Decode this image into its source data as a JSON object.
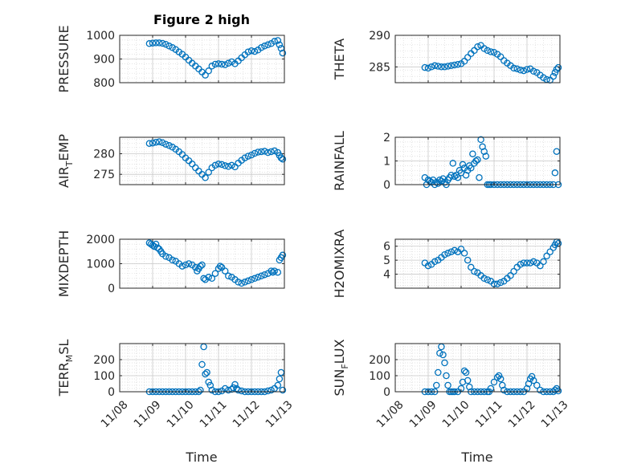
{
  "figure": {
    "title": "Figure 2 high",
    "marker_color": "#0072BD",
    "date_ticks": [
      "11/08",
      "11/09",
      "11/10",
      "11/11",
      "11/12",
      "11/13"
    ],
    "xlabel": "Time"
  },
  "chart_data": [
    {
      "type": "scatter",
      "id": "pressure",
      "col": 0,
      "row": 0,
      "ylabel": "PRESSURE",
      "ylabel_sub": "",
      "ylabel_suffix": "",
      "xlim": [
        0,
        5
      ],
      "ylim": [
        800,
        1000
      ],
      "yticks": [
        800,
        900,
        1000
      ],
      "ytick_labels": [
        "800",
        "900",
        "1000"
      ],
      "grid": true,
      "minor_grid": true,
      "show_xticklabels": false,
      "x": [
        0.9,
        1.0,
        1.1,
        1.2,
        1.3,
        1.4,
        1.5,
        1.6,
        1.7,
        1.8,
        1.9,
        2.0,
        2.1,
        2.2,
        2.3,
        2.4,
        2.5,
        2.6,
        2.7,
        2.8,
        2.9,
        3.0,
        3.1,
        3.2,
        3.3,
        3.4,
        3.5,
        3.6,
        3.7,
        3.8,
        3.9,
        4.0,
        4.1,
        4.2,
        4.3,
        4.4,
        4.5,
        4.6,
        4.7,
        4.8,
        4.85,
        4.9,
        4.95
      ],
      "y": [
        965,
        967,
        968,
        968,
        966,
        962,
        955,
        948,
        940,
        930,
        920,
        908,
        895,
        882,
        870,
        858,
        845,
        832,
        850,
        870,
        878,
        880,
        878,
        876,
        882,
        888,
        880,
        892,
        905,
        918,
        930,
        935,
        932,
        938,
        948,
        955,
        960,
        965,
        975,
        978,
        960,
        945,
        925
      ]
    },
    {
      "type": "scatter",
      "id": "theta",
      "col": 1,
      "row": 0,
      "ylabel": "THETA",
      "ylabel_sub": "",
      "ylabel_suffix": "",
      "xlim": [
        0,
        5
      ],
      "ylim": [
        282.5,
        290
      ],
      "yticks": [
        285,
        290
      ],
      "ytick_labels": [
        "285",
        "290"
      ],
      "grid": true,
      "minor_grid": true,
      "show_xticklabels": false,
      "x": [
        0.9,
        1.0,
        1.1,
        1.2,
        1.3,
        1.4,
        1.5,
        1.6,
        1.7,
        1.8,
        1.9,
        2.0,
        2.1,
        2.2,
        2.3,
        2.4,
        2.5,
        2.6,
        2.7,
        2.8,
        2.9,
        3.0,
        3.1,
        3.2,
        3.3,
        3.4,
        3.5,
        3.6,
        3.7,
        3.8,
        3.9,
        4.0,
        4.1,
        4.2,
        4.3,
        4.4,
        4.5,
        4.6,
        4.7,
        4.8,
        4.85,
        4.9,
        4.95
      ],
      "y": [
        284.9,
        284.8,
        285.0,
        285.2,
        285.1,
        285.0,
        285.0,
        285.1,
        285.2,
        285.3,
        285.4,
        285.5,
        285.9,
        286.5,
        287.1,
        287.6,
        288.2,
        288.4,
        287.9,
        287.6,
        287.4,
        287.3,
        287.0,
        286.6,
        286.0,
        285.6,
        285.2,
        284.8,
        284.7,
        284.5,
        284.4,
        284.6,
        284.7,
        284.3,
        284.1,
        283.7,
        283.3,
        283.0,
        282.9,
        283.5,
        284.1,
        284.6,
        284.9
      ]
    },
    {
      "type": "scatter",
      "id": "air-temp",
      "col": 0,
      "row": 1,
      "ylabel": "AIR",
      "ylabel_sub": "T",
      "ylabel_suffix": "EMP",
      "xlim": [
        0,
        5
      ],
      "ylim": [
        272.5,
        284
      ],
      "yticks": [
        275,
        280
      ],
      "ytick_labels": [
        "275",
        "280"
      ],
      "grid": true,
      "minor_grid": true,
      "show_xticklabels": false,
      "x": [
        0.9,
        1.0,
        1.1,
        1.2,
        1.3,
        1.4,
        1.5,
        1.6,
        1.7,
        1.8,
        1.9,
        2.0,
        2.1,
        2.2,
        2.3,
        2.4,
        2.5,
        2.6,
        2.7,
        2.8,
        2.9,
        3.0,
        3.1,
        3.2,
        3.3,
        3.4,
        3.5,
        3.6,
        3.7,
        3.8,
        3.9,
        4.0,
        4.1,
        4.2,
        4.3,
        4.4,
        4.5,
        4.6,
        4.7,
        4.8,
        4.85,
        4.9,
        4.95
      ],
      "y": [
        282.5,
        282.6,
        282.8,
        282.9,
        282.7,
        282.3,
        282.0,
        281.6,
        281.1,
        280.5,
        279.8,
        279.0,
        278.3,
        277.5,
        276.6,
        275.8,
        275.0,
        274.2,
        275.5,
        276.6,
        277.2,
        277.5,
        277.4,
        277.1,
        276.9,
        277.2,
        276.8,
        277.7,
        278.4,
        279.0,
        279.4,
        279.7,
        280.1,
        280.4,
        280.5,
        280.6,
        280.3,
        280.5,
        280.7,
        280.3,
        279.6,
        279.0,
        278.7
      ]
    },
    {
      "type": "scatter",
      "id": "rainfall",
      "col": 1,
      "row": 1,
      "ylabel": "RAINFALL",
      "ylabel_sub": "",
      "ylabel_suffix": "",
      "xlim": [
        0,
        5
      ],
      "ylim": [
        0,
        2
      ],
      "yticks": [
        0,
        1,
        2
      ],
      "ytick_labels": [
        "0",
        "1",
        "2"
      ],
      "grid": true,
      "minor_grid": true,
      "show_xticklabels": false,
      "x": [
        0.9,
        0.95,
        1.0,
        1.05,
        1.1,
        1.15,
        1.2,
        1.25,
        1.3,
        1.35,
        1.4,
        1.45,
        1.5,
        1.55,
        1.6,
        1.65,
        1.7,
        1.75,
        1.8,
        1.85,
        1.9,
        1.95,
        2.0,
        2.05,
        2.1,
        2.15,
        2.2,
        2.25,
        2.3,
        2.35,
        2.4,
        2.45,
        2.5,
        2.55,
        2.6,
        2.65,
        2.7,
        2.75,
        2.8,
        2.85,
        2.9,
        3.0,
        3.1,
        3.2,
        3.3,
        3.4,
        3.5,
        3.6,
        3.7,
        3.8,
        3.9,
        4.0,
        4.1,
        4.2,
        4.3,
        4.4,
        4.5,
        4.6,
        4.7,
        4.8,
        4.85,
        4.9,
        4.95
      ],
      "y": [
        0.3,
        0.0,
        0.2,
        0.15,
        0.1,
        0.2,
        0.0,
        0.1,
        0.05,
        0.2,
        0.15,
        0.25,
        0.1,
        0.0,
        0.2,
        0.3,
        0.4,
        0.9,
        0.35,
        0.4,
        0.3,
        0.6,
        0.5,
        0.85,
        0.7,
        0.4,
        0.6,
        0.8,
        0.7,
        1.3,
        0.9,
        1.0,
        1.05,
        0.3,
        1.9,
        1.6,
        1.4,
        1.2,
        0.0,
        0.0,
        0.0,
        0.0,
        0.0,
        0.0,
        0.0,
        0.0,
        0.0,
        0.0,
        0.0,
        0.0,
        0.0,
        0.0,
        0.0,
        0.0,
        0.0,
        0.0,
        0.0,
        0.0,
        0.0,
        0.0,
        0.5,
        1.4,
        0.0
      ]
    },
    {
      "type": "scatter",
      "id": "mixdepth",
      "col": 0,
      "row": 2,
      "ylabel": "MIXDEPTH",
      "ylabel_sub": "",
      "ylabel_suffix": "",
      "xlim": [
        0,
        5
      ],
      "ylim": [
        0,
        2000
      ],
      "yticks": [
        0,
        1000,
        2000
      ],
      "ytick_labels": [
        "0",
        "1000",
        "2000"
      ],
      "grid": true,
      "minor_grid": true,
      "show_xticklabels": false,
      "x": [
        0.9,
        0.95,
        1.0,
        1.05,
        1.1,
        1.15,
        1.2,
        1.25,
        1.3,
        1.4,
        1.5,
        1.6,
        1.7,
        1.8,
        1.9,
        2.0,
        2.1,
        2.2,
        2.3,
        2.35,
        2.4,
        2.45,
        2.5,
        2.55,
        2.6,
        2.7,
        2.8,
        2.9,
        3.0,
        3.05,
        3.1,
        3.2,
        3.3,
        3.4,
        3.5,
        3.6,
        3.7,
        3.8,
        3.9,
        4.0,
        4.1,
        4.2,
        4.3,
        4.4,
        4.5,
        4.6,
        4.65,
        4.7,
        4.8,
        4.85,
        4.9,
        4.95
      ],
      "y": [
        1850,
        1800,
        1750,
        1700,
        1800,
        1650,
        1600,
        1500,
        1400,
        1300,
        1250,
        1150,
        1100,
        1000,
        900,
        950,
        1000,
        950,
        850,
        700,
        800,
        900,
        950,
        400,
        350,
        450,
        400,
        600,
        800,
        900,
        850,
        700,
        500,
        450,
        350,
        250,
        200,
        250,
        300,
        350,
        400,
        450,
        500,
        550,
        600,
        700,
        650,
        700,
        650,
        1150,
        1250,
        1350
      ]
    },
    {
      "type": "scatter",
      "id": "h2o-mixing-ratio",
      "col": 1,
      "row": 2,
      "ylabel": "H2OMIXRA",
      "ylabel_sub": "",
      "ylabel_suffix": "",
      "xlim": [
        0,
        5
      ],
      "ylim": [
        3,
        6.5
      ],
      "yticks": [
        4,
        5,
        6
      ],
      "ytick_labels": [
        "4",
        "5",
        "6"
      ],
      "grid": true,
      "minor_grid": true,
      "show_xticklabels": false,
      "x": [
        0.9,
        1.0,
        1.1,
        1.2,
        1.3,
        1.4,
        1.5,
        1.6,
        1.7,
        1.8,
        1.9,
        2.0,
        2.1,
        2.2,
        2.3,
        2.4,
        2.5,
        2.6,
        2.7,
        2.8,
        2.9,
        3.0,
        3.1,
        3.2,
        3.3,
        3.4,
        3.5,
        3.6,
        3.7,
        3.8,
        3.9,
        4.0,
        4.1,
        4.2,
        4.3,
        4.4,
        4.5,
        4.6,
        4.7,
        4.8,
        4.85,
        4.9,
        4.95
      ],
      "y": [
        4.8,
        4.6,
        4.7,
        4.9,
        5.0,
        5.2,
        5.4,
        5.5,
        5.6,
        5.7,
        5.6,
        5.8,
        5.5,
        5.0,
        4.5,
        4.2,
        4.1,
        3.9,
        3.7,
        3.6,
        3.5,
        3.3,
        3.3,
        3.4,
        3.5,
        3.7,
        3.9,
        4.2,
        4.5,
        4.7,
        4.8,
        4.8,
        4.8,
        4.9,
        4.8,
        4.6,
        4.9,
        5.3,
        5.6,
        5.9,
        6.1,
        6.3,
        6.2
      ]
    },
    {
      "type": "scatter",
      "id": "terr-msl",
      "col": 0,
      "row": 3,
      "ylabel": "TERR",
      "ylabel_sub": "M",
      "ylabel_suffix": "SL",
      "xlim": [
        0,
        5
      ],
      "ylim": [
        0,
        300
      ],
      "yticks": [
        0,
        100,
        200
      ],
      "ytick_labels": [
        "0",
        "100",
        "200"
      ],
      "grid": true,
      "minor_grid": true,
      "show_xticklabels": true,
      "x": [
        0.9,
        1.0,
        1.1,
        1.2,
        1.3,
        1.4,
        1.5,
        1.6,
        1.7,
        1.8,
        1.9,
        2.0,
        2.1,
        2.2,
        2.3,
        2.4,
        2.45,
        2.5,
        2.55,
        2.6,
        2.65,
        2.7,
        2.75,
        2.8,
        2.9,
        3.0,
        3.1,
        3.2,
        3.3,
        3.4,
        3.45,
        3.5,
        3.55,
        3.6,
        3.7,
        3.8,
        3.9,
        4.0,
        4.1,
        4.2,
        4.3,
        4.4,
        4.5,
        4.6,
        4.7,
        4.8,
        4.85,
        4.9,
        4.95
      ],
      "y": [
        0,
        0,
        0,
        0,
        0,
        0,
        0,
        0,
        0,
        0,
        0,
        0,
        0,
        0,
        0,
        0,
        10,
        170,
        280,
        110,
        120,
        60,
        40,
        10,
        0,
        0,
        5,
        20,
        10,
        15,
        25,
        45,
        20,
        10,
        5,
        0,
        0,
        0,
        0,
        0,
        0,
        0,
        5,
        10,
        20,
        40,
        80,
        120,
        10
      ]
    },
    {
      "type": "scatter",
      "id": "sun-flux",
      "col": 1,
      "row": 3,
      "ylabel": "SUN",
      "ylabel_sub": "F",
      "ylabel_suffix": "LUX",
      "xlim": [
        0,
        5
      ],
      "ylim": [
        0,
        300
      ],
      "yticks": [
        0,
        100,
        200
      ],
      "ytick_labels": [
        "0",
        "100",
        "200"
      ],
      "grid": true,
      "minor_grid": true,
      "show_xticklabels": true,
      "x": [
        0.9,
        1.0,
        1.1,
        1.2,
        1.25,
        1.3,
        1.35,
        1.4,
        1.45,
        1.5,
        1.55,
        1.6,
        1.65,
        1.7,
        1.75,
        1.8,
        1.9,
        2.0,
        2.05,
        2.1,
        2.15,
        2.2,
        2.25,
        2.3,
        2.4,
        2.5,
        2.6,
        2.7,
        2.8,
        2.85,
        2.9,
        3.0,
        3.1,
        3.15,
        3.2,
        3.25,
        3.3,
        3.4,
        3.5,
        3.6,
        3.7,
        3.8,
        3.9,
        4.0,
        4.05,
        4.1,
        4.15,
        4.2,
        4.3,
        4.4,
        4.5,
        4.6,
        4.7,
        4.8,
        4.85,
        4.9,
        4.95
      ],
      "y": [
        0,
        0,
        0,
        0,
        40,
        120,
        240,
        280,
        230,
        180,
        100,
        40,
        0,
        0,
        0,
        0,
        0,
        20,
        60,
        130,
        120,
        70,
        30,
        0,
        0,
        0,
        0,
        0,
        0,
        0,
        20,
        60,
        90,
        100,
        80,
        40,
        10,
        0,
        0,
        0,
        0,
        0,
        0,
        20,
        50,
        80,
        95,
        70,
        40,
        10,
        0,
        0,
        0,
        0,
        10,
        20,
        5
      ]
    }
  ]
}
